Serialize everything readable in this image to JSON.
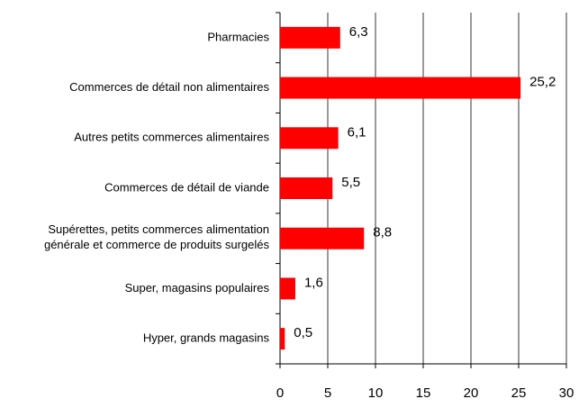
{
  "chart_data": {
    "type": "bar",
    "orientation": "horizontal",
    "categories": [
      "Pharmacies",
      "Commerces de détail non alimentaires",
      "Autres petits commerces alimentaires",
      "Commerces de détail de viande",
      "Supérettes, petits commerces alimentation générale et commerce de produits surgelés",
      "Super, magasins populaires",
      "Hyper, grands magasins"
    ],
    "values": [
      6.3,
      25.2,
      6.1,
      5.5,
      8.8,
      1.6,
      0.5
    ],
    "value_labels": [
      "6,3",
      "25,2",
      "6,1",
      "5,5",
      "8,8",
      "1,6",
      "0,5"
    ],
    "color": "#ff0000",
    "xlim": [
      0,
      30
    ],
    "xticks": [
      0,
      5,
      10,
      15,
      20,
      25,
      30
    ],
    "grid": true
  }
}
